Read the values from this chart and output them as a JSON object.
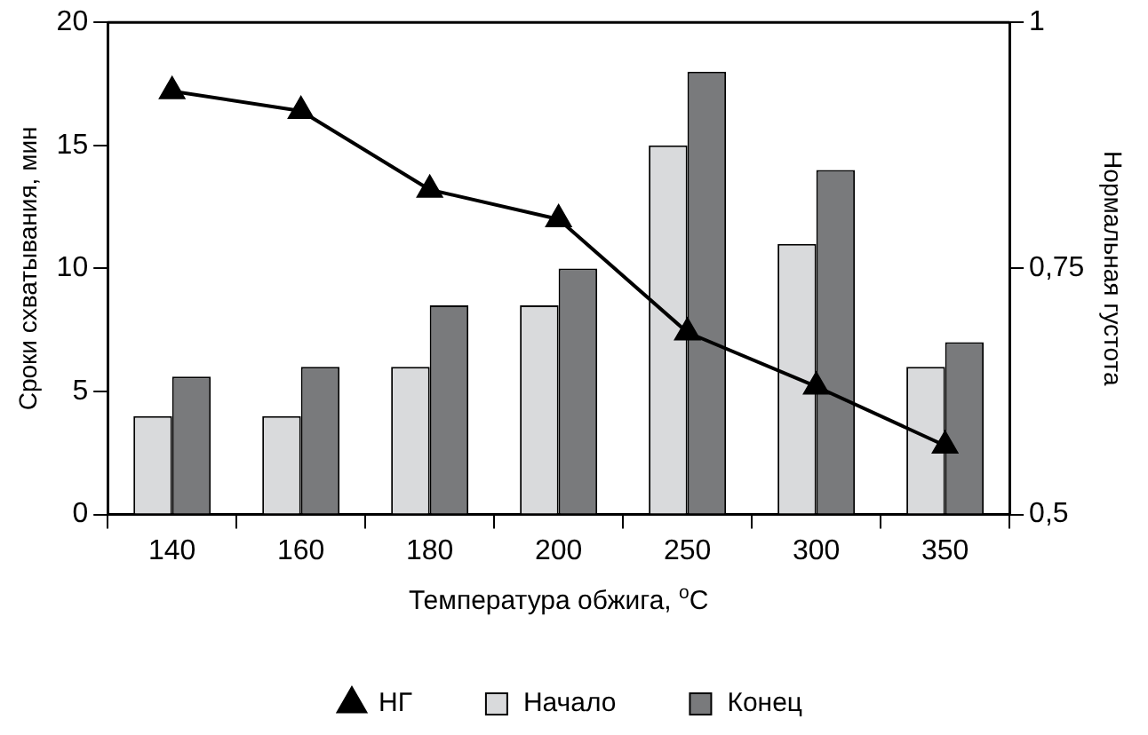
{
  "chart_data": {
    "type": "bar",
    "categories": [
      "140",
      "160",
      "180",
      "200",
      "250",
      "300",
      "350"
    ],
    "xlabel": "Температура обжига, $^{o}$C",
    "ylabel": "Сроки схватывания, мин",
    "y2label": "Нормальная густота",
    "series": [
      {
        "name": "Начало",
        "color": "#d9dadc",
        "values": [
          4,
          4,
          6,
          8.5,
          15,
          11,
          6
        ]
      },
      {
        "name": "Конец",
        "color": "#797a7c",
        "values": [
          5.6,
          6,
          8.5,
          10,
          18,
          14,
          7
        ]
      },
      {
        "name": "НГ",
        "type": "line",
        "axis": "y2",
        "color": "#000000",
        "marker": "triangle",
        "values": [
          0.93,
          0.91,
          0.83,
          0.8,
          0.685,
          0.63,
          0.57
        ]
      }
    ],
    "ylim": [
      0,
      20
    ],
    "yticks": [
      0,
      5,
      10,
      15,
      20
    ],
    "y2lim": [
      0.5,
      1
    ],
    "y2ticks": [
      {
        "value": 0.5,
        "label": "0,5"
      },
      {
        "value": 0.75,
        "label": "0,75"
      },
      {
        "value": 1,
        "label": "1"
      }
    ],
    "grid": false,
    "legend": "bottom"
  }
}
